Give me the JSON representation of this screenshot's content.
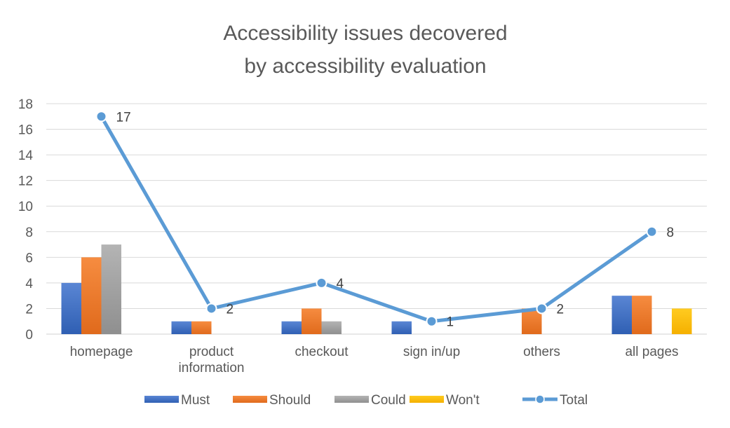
{
  "chart_data": {
    "type": "bar",
    "title_lines": [
      "Accessibility issues decovered",
      "by accessibility evaluation"
    ],
    "categories": [
      [
        "homepage"
      ],
      [
        "product",
        "information"
      ],
      [
        "checkout"
      ],
      [
        "sign in/up"
      ],
      [
        "others"
      ],
      [
        "all pages"
      ]
    ],
    "ylim": [
      0,
      18
    ],
    "yticks": [
      0,
      2,
      4,
      6,
      8,
      10,
      12,
      14,
      16,
      18
    ],
    "grid": true,
    "legend_position": "bottom",
    "series": [
      {
        "name": "Must",
        "type": "bar",
        "color": "#4472C4",
        "values": [
          4,
          1,
          1,
          1,
          0,
          3
        ]
      },
      {
        "name": "Should",
        "type": "bar",
        "color": "#ED7D31",
        "values": [
          6,
          1,
          2,
          0,
          2,
          3
        ]
      },
      {
        "name": "Could",
        "type": "bar",
        "color": "#A5A5A5",
        "values": [
          7,
          0,
          1,
          0,
          0,
          0
        ]
      },
      {
        "name": "Won't",
        "type": "bar",
        "color": "#FFC000",
        "values": [
          0,
          0,
          0,
          0,
          0,
          2
        ]
      },
      {
        "name": "Total",
        "type": "line",
        "color": "#5B9BD5",
        "values": [
          17,
          2,
          4,
          1,
          2,
          8
        ],
        "data_labels": true
      }
    ]
  }
}
